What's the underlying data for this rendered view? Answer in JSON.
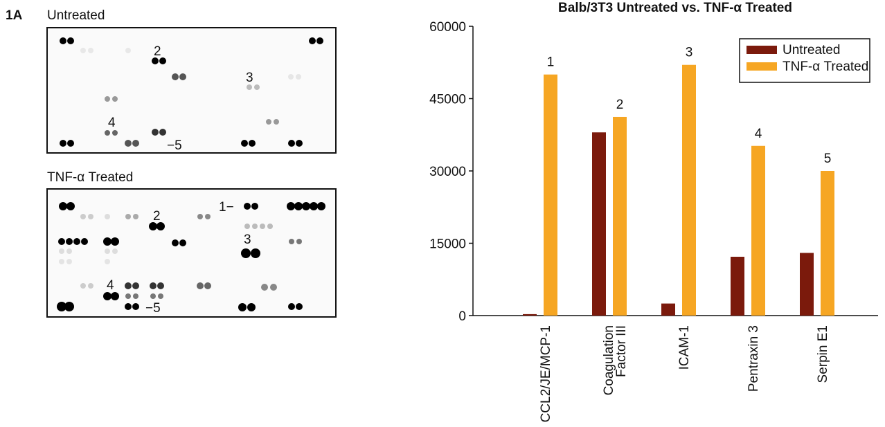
{
  "figure_label": "1A",
  "blots": [
    {
      "label": "Untreated",
      "markers": [
        "2",
        "3",
        "4",
        "−5"
      ]
    },
    {
      "label": "TNF-α Treated",
      "markers": [
        "1−",
        "2",
        "3",
        "4",
        "−5"
      ]
    }
  ],
  "chart_data": {
    "type": "bar",
    "title": "Balb/3T3 Untreated vs. TNF-α Treated",
    "categories": [
      "CCL2/JE/MCP-1",
      "Coagulation\nFactor III",
      "ICAM-1",
      "Pentraxin 3",
      "Serpin E1"
    ],
    "series": [
      {
        "name": "Untreated",
        "color": "#7b1a0c",
        "values": [
          300,
          38000,
          2500,
          12200,
          13000
        ]
      },
      {
        "name": "TNF-α Treated",
        "color": "#f6a623",
        "values": [
          50000,
          41200,
          52000,
          35200,
          30000
        ]
      }
    ],
    "annotations": [
      "1",
      "2",
      "3",
      "4",
      "5"
    ],
    "ylim": [
      0,
      60000
    ],
    "yticks": [
      0,
      15000,
      30000,
      45000,
      60000
    ],
    "legend": "upper right"
  }
}
